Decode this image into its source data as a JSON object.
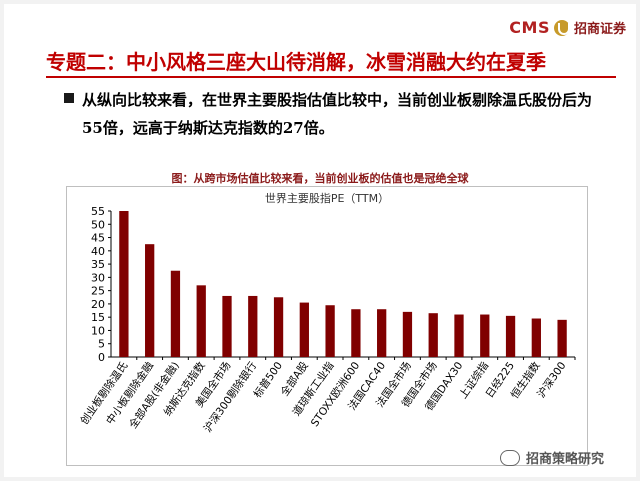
{
  "header": {
    "logo_text": "CMS",
    "logo_name": "招商证券"
  },
  "title": "专题二：中小风格三座大山待消解，冰雪消融大约在夏季",
  "bullet": "从纵向比较来看，在世界主要股指估值比较中，当前创业板剔除温氏股份后为55倍，远高于纳斯达克指数的27倍。",
  "caption": "图：从跨市场估值比较来看，当前创业板的估值也是冠绝全球",
  "watermark": "招商策略研究",
  "colors": {
    "bar": "#800000",
    "title": "#c00000"
  },
  "chart_data": {
    "type": "bar",
    "title": "世界主要股指PE（TTM）",
    "categories": [
      "创业板剔除温氏",
      "中小板剔除金融",
      "全部A股(非金融)",
      "纳斯达克指数",
      "美国全市场",
      "沪深300剔除银行",
      "标普500",
      "全部A股",
      "道琼斯工业指",
      "STOXX欧洲600",
      "法国CAC40",
      "法国全市场",
      "德国全市场",
      "德国DAX30",
      "上证综指",
      "日经225",
      "恒生指数",
      "沪深300"
    ],
    "values": [
      55,
      42.5,
      32.5,
      27,
      23,
      23,
      22.5,
      20.5,
      19.5,
      18,
      18,
      17,
      16.5,
      16,
      16,
      15.5,
      14.5,
      14
    ],
    "ylim": [
      0,
      55
    ],
    "yticks": [
      0,
      5,
      10,
      15,
      20,
      25,
      30,
      35,
      40,
      45,
      50,
      55
    ],
    "grid": false
  }
}
